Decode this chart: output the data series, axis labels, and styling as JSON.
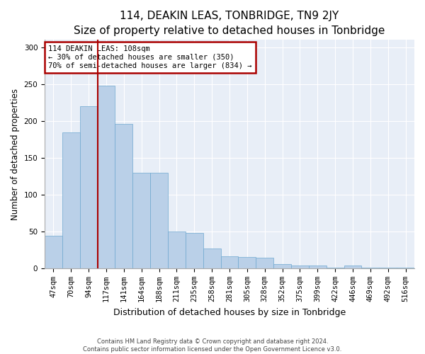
{
  "title": "114, DEAKIN LEAS, TONBRIDGE, TN9 2JY",
  "subtitle": "Size of property relative to detached houses in Tonbridge",
  "xlabel": "Distribution of detached houses by size in Tonbridge",
  "ylabel": "Number of detached properties",
  "categories": [
    "47sqm",
    "70sqm",
    "94sqm",
    "117sqm",
    "141sqm",
    "164sqm",
    "188sqm",
    "211sqm",
    "235sqm",
    "258sqm",
    "281sqm",
    "305sqm",
    "328sqm",
    "352sqm",
    "375sqm",
    "399sqm",
    "422sqm",
    "446sqm",
    "469sqm",
    "492sqm",
    "516sqm"
  ],
  "values": [
    44,
    184,
    220,
    248,
    196,
    130,
    130,
    50,
    48,
    27,
    16,
    15,
    14,
    6,
    4,
    4,
    1,
    4,
    1,
    1,
    1
  ],
  "bar_color": "#bad0e8",
  "bar_edge_color": "#6fa8d0",
  "bg_color": "#e8eef7",
  "vline_color": "#aa0000",
  "vline_x_index": 2.5,
  "annotation_line1": "114 DEAKIN LEAS: 108sqm",
  "annotation_line2": "← 30% of detached houses are smaller (350)",
  "annotation_line3": "70% of semi-detached houses are larger (834) →",
  "annotation_box_color": "#aa0000",
  "footer_line1": "Contains HM Land Registry data © Crown copyright and database right 2024.",
  "footer_line2": "Contains public sector information licensed under the Open Government Licence v3.0.",
  "ylim": [
    0,
    310
  ],
  "yticks": [
    0,
    50,
    100,
    150,
    200,
    250,
    300
  ],
  "title_fontsize": 11,
  "subtitle_fontsize": 10,
  "tick_fontsize": 7.5,
  "ylabel_fontsize": 8.5,
  "xlabel_fontsize": 9,
  "annotation_fontsize": 7.5,
  "footer_fontsize": 6
}
